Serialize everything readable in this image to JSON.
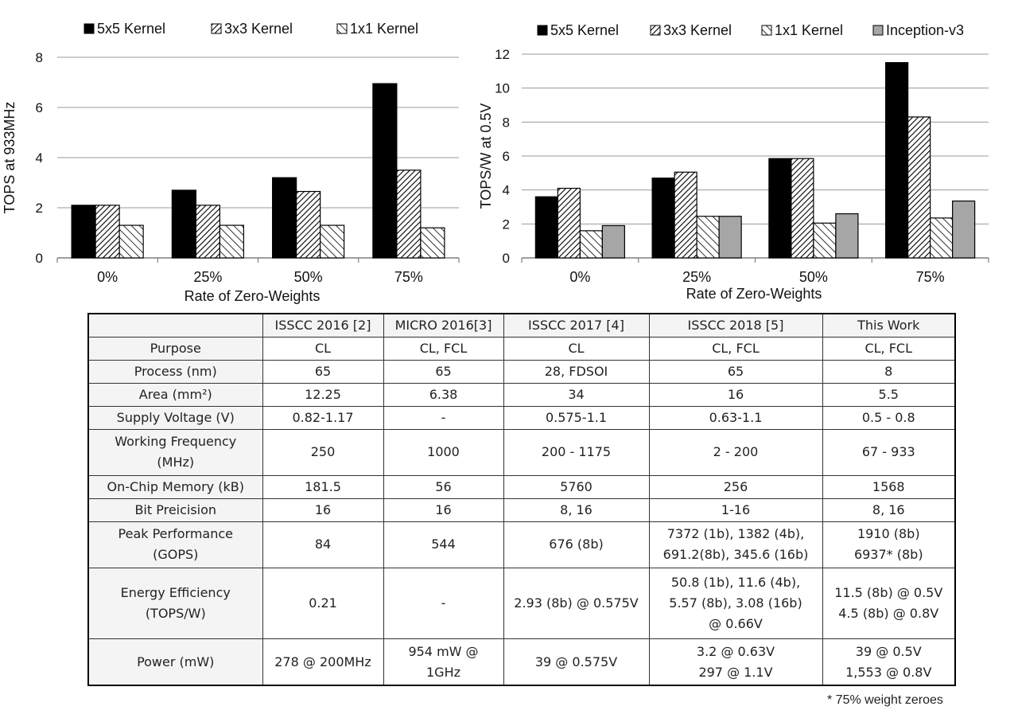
{
  "colors": {
    "solid": "#000000",
    "hatch_dense": "#000000",
    "hatch_light": "#000000",
    "gray": "#a6a6a6",
    "axis": "#7f7f7f"
  },
  "chart_data": [
    {
      "type": "bar",
      "categories": [
        "0%",
        "25%",
        "50%",
        "75%"
      ],
      "series": [
        {
          "name": "5x5 Kernel",
          "fill": "solid",
          "values": [
            2.1,
            2.7,
            3.2,
            6.95
          ]
        },
        {
          "name": "3x3 Kernel",
          "fill": "hatch_dense",
          "values": [
            2.1,
            2.1,
            2.65,
            3.5
          ]
        },
        {
          "name": "1x1 Kernel",
          "fill": "hatch_light",
          "values": [
            1.3,
            1.3,
            1.3,
            1.2
          ]
        }
      ],
      "xlabel": "Rate of Zero-Weights",
      "ylabel": "TOPS at 933MHz",
      "ylim": [
        0,
        8
      ],
      "yticks": [
        "0",
        "2",
        "4",
        "6",
        "8"
      ],
      "grid": true,
      "legend": "top"
    },
    {
      "type": "bar",
      "categories": [
        "0%",
        "25%",
        "50%",
        "75%"
      ],
      "series": [
        {
          "name": "5x5 Kernel",
          "fill": "solid",
          "values": [
            3.6,
            4.7,
            5.85,
            11.5
          ]
        },
        {
          "name": "3x3 Kernel",
          "fill": "hatch_dense",
          "values": [
            4.1,
            5.05,
            5.85,
            8.3
          ]
        },
        {
          "name": "1x1 Kernel",
          "fill": "hatch_light",
          "values": [
            1.6,
            2.45,
            2.05,
            2.35
          ]
        },
        {
          "name": "Inception-v3",
          "fill": "gray",
          "values": [
            1.9,
            2.45,
            2.6,
            3.35
          ]
        }
      ],
      "xlabel": "Rate of Zero-Weights",
      "ylabel": "TOPS/W at 0.5V",
      "ylim": [
        0,
        12
      ],
      "yticks": [
        "0",
        "2",
        "4",
        "6",
        "8",
        "10",
        "12"
      ],
      "grid": true,
      "legend": "top"
    }
  ],
  "table": {
    "columns": [
      "",
      "ISSCC 2016 [2]",
      "MICRO 2016[3]",
      "ISSCC 2017 [4]",
      "ISSCC 2018 [5]",
      "This Work"
    ],
    "rows": [
      [
        "Purpose",
        "CL",
        "CL, FCL",
        "CL",
        "CL, FCL",
        "CL, FCL"
      ],
      [
        "Process (nm)",
        "65",
        "65",
        "28, FDSOI",
        "65",
        "8"
      ],
      [
        "Area (mm²)",
        "12.25",
        "6.38",
        "34",
        "16",
        "5.5"
      ],
      [
        "Supply Voltage (V)",
        "0.82-1.17",
        "-",
        "0.575-1.1",
        "0.63-1.1",
        "0.5 - 0.8"
      ],
      [
        "Working Frequency\n(MHz)",
        "250",
        "1000",
        "200 - 1175",
        "2 - 200",
        "67 - 933"
      ],
      [
        "On-Chip Memory (kB)",
        "181.5",
        "56",
        "5760",
        "256",
        "1568"
      ],
      [
        "Bit Preicision",
        "16",
        "16",
        "8, 16",
        "1-16",
        "8, 16"
      ],
      [
        "Peak Performance\n(GOPS)",
        "84",
        "544",
        "676 (8b)",
        "7372 (1b), 1382 (4b),\n691.2(8b), 345.6 (16b)",
        "1910 (8b)\n6937* (8b)"
      ],
      [
        "Energy Efficiency\n(TOPS/W)",
        "0.21",
        "-",
        "2.93 (8b) @ 0.575V",
        "50.8 (1b), 11.6 (4b),\n5.57 (8b), 3.08 (16b)\n@ 0.66V",
        "11.5 (8b) @ 0.5V\n4.5 (8b) @ 0.8V"
      ],
      [
        "Power (mW)",
        "278 @ 200MHz",
        "954 mW @\n1GHz",
        "39 @ 0.575V",
        "3.2 @ 0.63V\n297 @ 1.1V",
        "39 @ 0.5V\n1,553 @ 0.8V"
      ]
    ],
    "footnote": "* 75% weight zeroes"
  }
}
